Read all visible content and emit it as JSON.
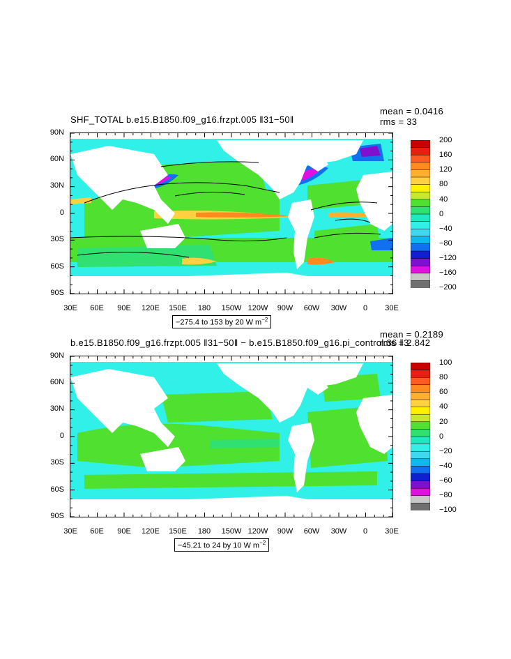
{
  "axes": {
    "lat_labels": [
      "90N",
      "60N",
      "30N",
      "0",
      "30S",
      "60S",
      "90S"
    ],
    "lon_labels": [
      "30E",
      "60E",
      "90E",
      "120E",
      "150E",
      "180",
      "150W",
      "120W",
      "90W",
      "60W",
      "30W",
      "0",
      "30E"
    ]
  },
  "panels": [
    {
      "title": "SHF_TOTAL b.e15.B1850.f09_g16.frzpt.005 ‖31−50‖",
      "mean_text": "mean = 0.0416",
      "rms_text": "rms = 33",
      "range_text": "−275.4 to 153 by 20  W m",
      "range_exp": "−2",
      "colorbar_labels": [
        "200",
        "160",
        "120",
        "80",
        "40",
        "0",
        "−40",
        "−80",
        "−120",
        "−160",
        "−200"
      ],
      "colors": [
        "#c80000",
        "#e82010",
        "#ff5a20",
        "#ff8a20",
        "#ffb030",
        "#ffd040",
        "#fff000",
        "#c8e830",
        "#50e030",
        "#30e070",
        "#20e8c0",
        "#30f0e8",
        "#40d8f0",
        "#10b8f0",
        "#1070f0",
        "#1020d0",
        "#8010d0",
        "#e010e0",
        "#c8c8c8",
        "#707070"
      ]
    },
    {
      "title": "b.e15.B1850.f09_g16.frzpt.005 ‖31−50‖ − b.e15.B1850.f09_g16.pi_control.36 ‖3",
      "mean_text": "mean = 0.2189",
      "rms_text": "rms = 2.842",
      "range_text": "−45.21 to 24 by 10  W m",
      "range_exp": "−2",
      "colorbar_labels": [
        "100",
        "80",
        "60",
        "40",
        "20",
        "0",
        "−20",
        "−40",
        "−60",
        "−80",
        "−100"
      ],
      "colors": [
        "#c80000",
        "#e82010",
        "#ff5a20",
        "#ff8a20",
        "#ffb030",
        "#ffd040",
        "#fff000",
        "#c8e830",
        "#50e030",
        "#30e070",
        "#20e8c0",
        "#30f0e8",
        "#40d8f0",
        "#10b8f0",
        "#1070f0",
        "#1020d0",
        "#8010d0",
        "#e010e0",
        "#c8c8c8",
        "#707070"
      ]
    }
  ]
}
